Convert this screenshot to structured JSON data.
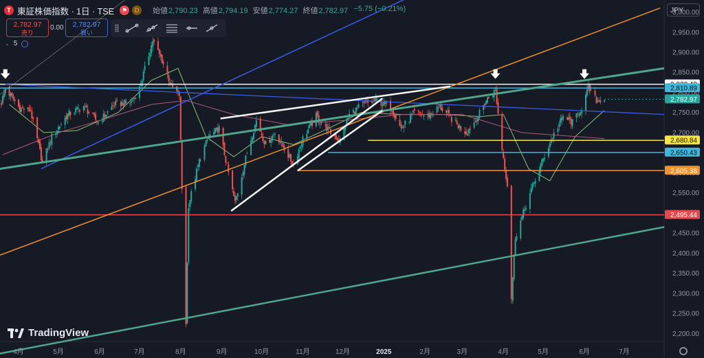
{
  "header": {
    "logo_letter": "T",
    "symbol": "東証株価指数 · 1日 · TSE",
    "ohlc": [
      {
        "label": "始値",
        "value": "2,790.23"
      },
      {
        "label": "高値",
        "value": "2,794.19"
      },
      {
        "label": "安値",
        "value": "2,774.27"
      },
      {
        "label": "終値",
        "value": "2,782.97"
      },
      {
        "label": "",
        "value": "−5.75 (−0.21%)"
      }
    ],
    "d_badge": "D",
    "currency": "JPY"
  },
  "trade": {
    "sell_price": "2,782.97",
    "sell_label": "売り",
    "spread": "0.00",
    "buy_price": "2,782.97",
    "buy_label": "買い"
  },
  "indicator_count": "5",
  "branding": "TradingView",
  "colors": {
    "up": "#26a69a",
    "down": "#ef5350",
    "ma_short": "#8ec07c",
    "ma_long": "#b0597a",
    "white_line": "#f5f5f5",
    "blue_line": "#3a5ce6",
    "orange_line": "#f0922e",
    "green_line": "#4fa68c",
    "yellow_line": "#f4e542",
    "cyan_line": "#3fb6dc",
    "red_line": "#e5484d"
  },
  "chart_data": {
    "type": "candlestick",
    "ylim": [
      2180,
      3030
    ],
    "y_ticks": [
      2200,
      2250,
      2300,
      2350,
      2400,
      2450,
      2500,
      2550,
      2600,
      2650,
      2700,
      2750,
      2800,
      2850,
      2900,
      2950,
      3000
    ],
    "x_range": [
      "2024-03-18",
      "2025-07-31"
    ],
    "x_ticks": [
      {
        "label": "4月",
        "date": "2024-04-01"
      },
      {
        "label": "5月",
        "date": "2024-05-01"
      },
      {
        "label": "6月",
        "date": "2024-06-01"
      },
      {
        "label": "7月",
        "date": "2024-07-01"
      },
      {
        "label": "8月",
        "date": "2024-08-01"
      },
      {
        "label": "9月",
        "date": "2024-09-01"
      },
      {
        "label": "10月",
        "date": "2024-10-01"
      },
      {
        "label": "11月",
        "date": "2024-11-01"
      },
      {
        "label": "12月",
        "date": "2024-12-01"
      },
      {
        "label": "2025",
        "date": "2025-01-01",
        "bold": true
      },
      {
        "label": "2月",
        "date": "2025-02-01"
      },
      {
        "label": "3月",
        "date": "2025-03-01"
      },
      {
        "label": "4月",
        "date": "2025-04-01"
      },
      {
        "label": "5月",
        "date": "2025-05-01"
      },
      {
        "label": "6月",
        "date": "2025-06-01"
      },
      {
        "label": "7月",
        "date": "2025-07-01"
      }
    ],
    "price_path": [
      [
        "2024-03-19",
        2775
      ],
      [
        "2024-03-22",
        2810
      ],
      [
        "2024-04-02",
        2760
      ],
      [
        "2024-04-10",
        2755
      ],
      [
        "2024-04-19",
        2625
      ],
      [
        "2024-04-26",
        2690
      ],
      [
        "2024-05-08",
        2745
      ],
      [
        "2024-05-20",
        2765
      ],
      [
        "2024-05-31",
        2725
      ],
      [
        "2024-06-12",
        2770
      ],
      [
        "2024-06-25",
        2775
      ],
      [
        "2024-07-01",
        2810
      ],
      [
        "2024-07-11",
        2929
      ],
      [
        "2024-07-18",
        2880
      ],
      [
        "2024-07-25",
        2815
      ],
      [
        "2024-07-31",
        2794
      ],
      [
        "2024-08-02",
        2560
      ],
      [
        "2024-08-05",
        2227
      ],
      [
        "2024-08-07",
        2520
      ],
      [
        "2024-08-15",
        2630
      ],
      [
        "2024-08-22",
        2690
      ],
      [
        "2024-08-30",
        2710
      ],
      [
        "2024-09-06",
        2600
      ],
      [
        "2024-09-11",
        2525
      ],
      [
        "2024-09-20",
        2650
      ],
      [
        "2024-09-27",
        2730
      ],
      [
        "2024-10-04",
        2670
      ],
      [
        "2024-10-11",
        2700
      ],
      [
        "2024-10-18",
        2660
      ],
      [
        "2024-10-25",
        2620
      ],
      [
        "2024-11-01",
        2685
      ],
      [
        "2024-11-11",
        2740
      ],
      [
        "2024-11-22",
        2700
      ],
      [
        "2024-11-29",
        2680
      ],
      [
        "2024-12-06",
        2745
      ],
      [
        "2024-12-16",
        2770
      ],
      [
        "2024-12-27",
        2780
      ],
      [
        "2025-01-07",
        2760
      ],
      [
        "2025-01-14",
        2710
      ],
      [
        "2025-01-24",
        2750
      ],
      [
        "2025-02-03",
        2740
      ],
      [
        "2025-02-12",
        2765
      ],
      [
        "2025-02-25",
        2720
      ],
      [
        "2025-03-04",
        2700
      ],
      [
        "2025-03-12",
        2735
      ],
      [
        "2025-03-19",
        2780
      ],
      [
        "2025-03-26",
        2805
      ],
      [
        "2025-03-31",
        2660
      ],
      [
        "2025-04-04",
        2570
      ],
      [
        "2025-04-07",
        2290
      ],
      [
        "2025-04-10",
        2440
      ],
      [
        "2025-04-18",
        2520
      ],
      [
        "2025-04-28",
        2610
      ],
      [
        "2025-05-08",
        2690
      ],
      [
        "2025-05-16",
        2740
      ],
      [
        "2025-05-23",
        2725
      ],
      [
        "2025-05-30",
        2760
      ],
      [
        "2025-06-04",
        2810
      ],
      [
        "2025-06-10",
        2780
      ],
      [
        "2025-06-16",
        2783
      ]
    ],
    "moving_averages": [
      {
        "color": "ma_short",
        "path": [
          [
            "2024-03-25",
            2770
          ],
          [
            "2024-04-20",
            2700
          ],
          [
            "2024-05-15",
            2705
          ],
          [
            "2024-06-15",
            2750
          ],
          [
            "2024-07-10",
            2830
          ],
          [
            "2024-07-30",
            2860
          ],
          [
            "2024-08-20",
            2690
          ],
          [
            "2024-09-10",
            2640
          ],
          [
            "2024-10-01",
            2690
          ],
          [
            "2024-10-25",
            2670
          ],
          [
            "2024-11-20",
            2710
          ],
          [
            "2024-12-15",
            2750
          ],
          [
            "2025-01-15",
            2745
          ],
          [
            "2025-02-15",
            2745
          ],
          [
            "2025-03-15",
            2740
          ],
          [
            "2025-04-01",
            2745
          ],
          [
            "2025-04-20",
            2610
          ],
          [
            "2025-05-06",
            2580
          ],
          [
            "2025-05-25",
            2690
          ],
          [
            "2025-06-16",
            2755
          ]
        ]
      },
      {
        "color": "ma_long",
        "path": [
          [
            "2024-03-20",
            2645
          ],
          [
            "2024-05-01",
            2700
          ],
          [
            "2024-06-01",
            2730
          ],
          [
            "2024-07-10",
            2770
          ],
          [
            "2024-08-05",
            2780
          ],
          [
            "2024-09-10",
            2745
          ],
          [
            "2024-10-20",
            2720
          ],
          [
            "2024-12-01",
            2730
          ],
          [
            "2025-01-15",
            2745
          ],
          [
            "2025-03-01",
            2745
          ],
          [
            "2025-04-15",
            2700
          ],
          [
            "2025-06-16",
            2685
          ]
        ]
      }
    ],
    "horizontal_levels": [
      {
        "value": 2820.4,
        "color": "white_line",
        "start": "2024-03-18",
        "label": "2,820.40"
      },
      {
        "value": 2810.89,
        "color": "cyan_line",
        "start": "2024-03-18",
        "label": "2,810.89"
      },
      {
        "value": 2782.97,
        "color": "up",
        "start": "2025-06-16",
        "label": "2,782.97",
        "current": true
      },
      {
        "value": 2680.84,
        "color": "yellow_line",
        "start": "2024-12-20",
        "label": "2,680.84"
      },
      {
        "value": 2650.43,
        "color": "cyan_line",
        "start": "2024-11-20",
        "label": "2,650.43"
      },
      {
        "value": 2605.38,
        "color": "orange_line",
        "start": "2024-10-28",
        "label": "2,605.38"
      },
      {
        "value": 2495.44,
        "color": "red_line",
        "start": "2024-03-18",
        "label": "2,495.44"
      }
    ],
    "trend_lines": [
      {
        "color": "blue_line",
        "width": 1.5,
        "from": [
          "2024-04-18",
          2610
        ],
        "to": [
          "2025-03-02",
          3100
        ]
      },
      {
        "color": "blue_line",
        "width": 1.3,
        "from": [
          "2024-03-22",
          2820
        ],
        "to": [
          "2025-07-31",
          2745
        ]
      },
      {
        "color": "orange_line",
        "width": 1.5,
        "from": [
          "2024-03-18",
          2395
        ],
        "to": [
          "2025-07-28",
          3010
        ]
      },
      {
        "color": "green_line",
        "width": 3,
        "from": [
          "2024-03-18",
          2610
        ],
        "to": [
          "2025-07-31",
          2860
        ]
      },
      {
        "color": "green_line",
        "width": 2.5,
        "from": [
          "2024-03-18",
          2150
        ],
        "to": [
          "2025-07-31",
          2465
        ]
      },
      {
        "color": "white_line",
        "width": 2.5,
        "from": [
          "2024-08-31",
          2735
        ],
        "to": [
          "2025-02-20",
          2815
        ]
      },
      {
        "color": "white_line",
        "width": 2.5,
        "from": [
          "2024-09-08",
          2505
        ],
        "to": [
          "2024-12-31",
          2785
        ]
      },
      {
        "color": "white_line",
        "width": 2.5,
        "from": [
          "2024-10-28",
          2605
        ],
        "to": [
          "2024-12-31",
          2755
        ]
      },
      {
        "color": "white_line",
        "width": 0.6,
        "from": [
          "2024-03-18",
          2795
        ],
        "to": [
          "2024-07-18",
          3100
        ]
      }
    ],
    "markers": [
      {
        "type": "down-arrow",
        "date": "2024-03-22",
        "value": 2820
      },
      {
        "type": "down-arrow",
        "date": "2025-03-26",
        "value": 2820
      },
      {
        "type": "down-arrow",
        "date": "2025-06-01",
        "value": 2820
      }
    ]
  }
}
